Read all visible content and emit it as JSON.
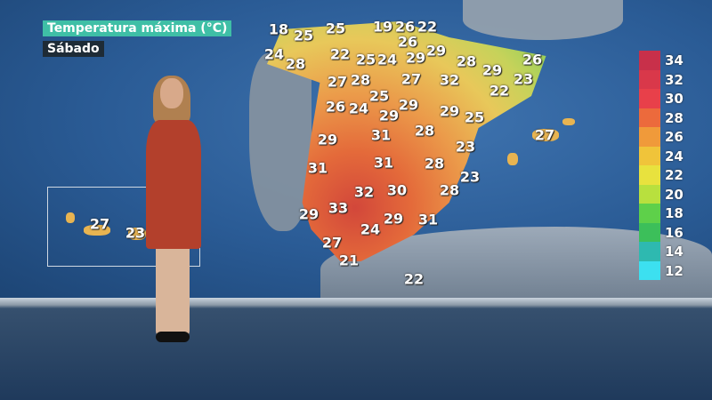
{
  "header": {
    "title": "Temperatura máxima (°C)",
    "day": "Sábado"
  },
  "map": {
    "temperatures": [
      18,
      25,
      25,
      19,
      26,
      22,
      26,
      24,
      28,
      22,
      25,
      24,
      29,
      29,
      28,
      29,
      26,
      23,
      27,
      28,
      27,
      32,
      22,
      25,
      26,
      24,
      29,
      29,
      29,
      25,
      27,
      29,
      31,
      28,
      23,
      31,
      31,
      28,
      23,
      32,
      30,
      28,
      29,
      33,
      29,
      31,
      24,
      27,
      21,
      22
    ],
    "canary_temperatures": [
      27,
      23
    ]
  },
  "legend": {
    "values": [
      "34",
      "32",
      "30",
      "28",
      "26",
      "24",
      "22",
      "20",
      "18",
      "16",
      "14",
      "12"
    ],
    "colors": [
      "#c8304a",
      "#d9384a",
      "#e8404a",
      "#ec6a3c",
      "#f09a3a",
      "#f0c43a",
      "#e8e23e",
      "#b8e03e",
      "#5ed04a",
      "#3cbf5a",
      "#2eb9b0",
      "#3ce0f0"
    ]
  }
}
